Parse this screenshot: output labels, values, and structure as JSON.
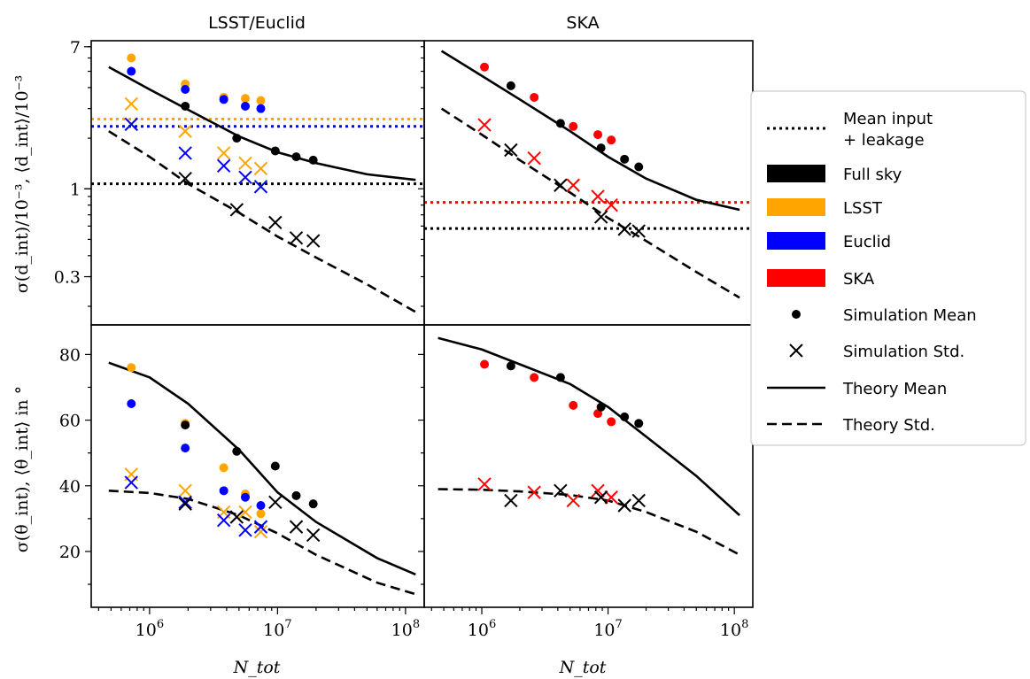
{
  "colors": {
    "full_sky": "#000000",
    "lsst": "#FFA500",
    "euclid": "#0000FF",
    "ska": "#FF0000"
  },
  "chart_data": [
    {
      "type": "scatter",
      "panel": "top-left",
      "title": "LSST/Euclid",
      "ylabel": "σ(d_int)/10⁻³, ⟨d_int⟩/10⁻³",
      "yscale": "log",
      "xscale": "log",
      "xlim": [
        350000,
        140000000
      ],
      "ylim": [
        0.155,
        7.6
      ],
      "yticks": [
        {
          "v": 7,
          "label": "7"
        },
        {
          "v": 1,
          "label": "1"
        },
        {
          "v": 0.3,
          "label": "0.3"
        }
      ],
      "xticks": [],
      "hlines": [
        {
          "name": "mean-input-lsst",
          "color": "#FFA500",
          "y": 2.6
        },
        {
          "name": "mean-input-euclid",
          "color": "#0000FF",
          "y": 2.35
        },
        {
          "name": "mean-input",
          "color": "#000000",
          "y": 1.07
        }
      ],
      "theory_mean": {
        "x": [
          480000,
          1000000,
          2000000,
          5000000,
          10000000,
          20000000,
          50000000,
          120000000
        ],
        "y": [
          5.3,
          3.9,
          2.95,
          2.05,
          1.65,
          1.42,
          1.22,
          1.13
        ]
      },
      "theory_std": {
        "x": [
          480000,
          1000000,
          2000000,
          5000000,
          10000000,
          20000000,
          50000000,
          120000000
        ],
        "y": [
          2.2,
          1.55,
          1.07,
          0.72,
          0.52,
          0.39,
          0.27,
          0.185
        ]
      },
      "sim_mean": [
        {
          "series": "lsst",
          "x": [
            720000,
            1900000,
            3800000,
            5600000,
            7400000
          ],
          "y": [
            6.0,
            4.2,
            3.5,
            3.45,
            3.35
          ]
        },
        {
          "series": "euclid",
          "x": [
            720000,
            1900000,
            3800000,
            5600000,
            7400000
          ],
          "y": [
            5.0,
            3.9,
            3.4,
            3.1,
            3.0
          ]
        },
        {
          "series": "full_sky",
          "x": [
            1900000,
            4800000,
            9600000,
            14000000,
            19000000
          ],
          "y": [
            3.1,
            2.0,
            1.68,
            1.55,
            1.48
          ]
        }
      ],
      "sim_std": [
        {
          "series": "lsst",
          "x": [
            720000,
            1900000,
            3800000,
            5600000,
            7400000
          ],
          "y": [
            3.2,
            2.2,
            1.63,
            1.42,
            1.32
          ]
        },
        {
          "series": "euclid",
          "x": [
            720000,
            1900000,
            3800000,
            5600000,
            7400000
          ],
          "y": [
            2.42,
            1.63,
            1.37,
            1.17,
            1.03
          ]
        },
        {
          "series": "full_sky",
          "x": [
            1900000,
            4800000,
            9600000,
            14000000,
            19000000
          ],
          "y": [
            1.15,
            0.75,
            0.63,
            0.51,
            0.49
          ]
        }
      ]
    },
    {
      "type": "scatter",
      "panel": "top-right",
      "title": "SKA",
      "yscale": "log",
      "xscale": "log",
      "xlim": [
        350000,
        140000000
      ],
      "ylim": [
        0.155,
        7.6
      ],
      "hlines": [
        {
          "name": "mean-input-ska",
          "color": "#FF0000",
          "y": 0.83
        },
        {
          "name": "mean-input",
          "color": "#000000",
          "y": 0.58
        }
      ],
      "theory_mean": {
        "x": [
          480000,
          1000000,
          2000000,
          5000000,
          10000000,
          20000000,
          50000000,
          110000000
        ],
        "y": [
          6.6,
          4.7,
          3.4,
          2.2,
          1.55,
          1.15,
          0.86,
          0.75
        ]
      },
      "theory_std": {
        "x": [
          480000,
          1000000,
          2000000,
          5000000,
          10000000,
          20000000,
          50000000,
          110000000
        ],
        "y": [
          3.0,
          2.1,
          1.48,
          0.95,
          0.67,
          0.49,
          0.32,
          0.225
        ]
      },
      "sim_mean": [
        {
          "series": "ska",
          "x": [
            1050000,
            2600000,
            5300000,
            8300000,
            10600000
          ],
          "y": [
            5.3,
            3.5,
            2.35,
            2.1,
            1.95
          ]
        },
        {
          "series": "full_sky",
          "x": [
            1700000,
            4200000,
            8800000,
            13500000,
            17500000
          ],
          "y": [
            4.1,
            2.45,
            1.75,
            1.5,
            1.35
          ]
        }
      ],
      "sim_std": [
        {
          "series": "ska",
          "x": [
            1050000,
            2600000,
            5300000,
            8300000,
            10600000
          ],
          "y": [
            2.4,
            1.52,
            1.05,
            0.9,
            0.8
          ]
        },
        {
          "series": "full_sky",
          "x": [
            1700000,
            4200000,
            8800000,
            13500000,
            17500000
          ],
          "y": [
            1.7,
            1.05,
            0.68,
            0.575,
            0.56
          ]
        }
      ]
    },
    {
      "type": "scatter",
      "panel": "bottom-left",
      "xlabel": "N_tot",
      "ylabel": "σ(θ_int), ⟨θ_int⟩ in °",
      "xscale": "log",
      "yscale": "linear",
      "xlim": [
        350000,
        140000000
      ],
      "ylim": [
        3,
        89
      ],
      "yticks": [
        {
          "v": 80,
          "label": "80"
        },
        {
          "v": 60,
          "label": "60"
        },
        {
          "v": 40,
          "label": "40"
        },
        {
          "v": 20,
          "label": "20"
        }
      ],
      "xticks": [
        {
          "v": 1000000,
          "base": "10",
          "exp": "6"
        },
        {
          "v": 10000000,
          "base": "10",
          "exp": "7"
        },
        {
          "v": 100000000,
          "base": "10",
          "exp": "8"
        }
      ],
      "theory_mean": {
        "x": [
          480000,
          1000000,
          2000000,
          5000000,
          10000000,
          20000000,
          60000000,
          120000000
        ],
        "y": [
          77.5,
          73,
          65,
          51,
          38,
          29,
          18,
          13
        ]
      },
      "theory_std": {
        "x": [
          480000,
          1000000,
          2000000,
          5000000,
          10000000,
          20000000,
          60000000,
          120000000
        ],
        "y": [
          38.5,
          37.8,
          36,
          31,
          25.5,
          19,
          10.5,
          7
        ]
      },
      "sim_mean": [
        {
          "series": "lsst",
          "x": [
            720000,
            1900000,
            3800000,
            5600000,
            7400000
          ],
          "y": [
            76,
            59,
            45.5,
            37.5,
            31.5
          ]
        },
        {
          "series": "euclid",
          "x": [
            720000,
            1900000,
            3800000,
            5600000,
            7400000
          ],
          "y": [
            65,
            51.5,
            38.5,
            36.5,
            34
          ]
        },
        {
          "series": "full_sky",
          "x": [
            1900000,
            4800000,
            9600000,
            14000000,
            19000000
          ],
          "y": [
            58.5,
            50.5,
            46,
            37,
            34.5
          ]
        }
      ],
      "sim_std": [
        {
          "series": "lsst",
          "x": [
            720000,
            1900000,
            3800000,
            5600000,
            7400000
          ],
          "y": [
            43.5,
            38.5,
            32,
            32,
            26
          ]
        },
        {
          "series": "euclid",
          "x": [
            720000,
            1900000,
            3800000,
            5600000,
            7400000
          ],
          "y": [
            41,
            35,
            29.5,
            26.5,
            27.5
          ]
        },
        {
          "series": "full_sky",
          "x": [
            1900000,
            4800000,
            9600000,
            14000000,
            19000000
          ],
          "y": [
            34.5,
            30.5,
            35,
            27.5,
            25
          ]
        }
      ]
    },
    {
      "type": "scatter",
      "panel": "bottom-right",
      "xlabel": "N_tot",
      "xscale": "log",
      "yscale": "linear",
      "xlim": [
        350000,
        140000000
      ],
      "ylim": [
        3,
        89
      ],
      "xticks": [
        {
          "v": 1000000,
          "base": "10",
          "exp": "6"
        },
        {
          "v": 10000000,
          "base": "10",
          "exp": "7"
        },
        {
          "v": 100000000,
          "base": "10",
          "exp": "8"
        }
      ],
      "theory_mean": {
        "x": [
          450000,
          1000000,
          2000000,
          5000000,
          10000000,
          20000000,
          50000000,
          110000000
        ],
        "y": [
          85,
          81.5,
          77,
          71,
          64,
          55,
          43,
          31
        ]
      },
      "theory_std": {
        "x": [
          450000,
          1000000,
          2000000,
          5000000,
          10000000,
          20000000,
          50000000,
          110000000
        ],
        "y": [
          39,
          38.8,
          38.3,
          37.2,
          35.5,
          32,
          26,
          19
        ]
      },
      "sim_mean": [
        {
          "series": "ska",
          "x": [
            1050000,
            2600000,
            5300000,
            8300000,
            10600000
          ],
          "y": [
            77,
            73,
            64.5,
            62,
            59.5
          ]
        },
        {
          "series": "full_sky",
          "x": [
            1700000,
            4200000,
            8800000,
            13500000,
            17500000
          ],
          "y": [
            76.5,
            73,
            64,
            61,
            59
          ]
        }
      ],
      "sim_std": [
        {
          "series": "ska",
          "x": [
            1050000,
            2600000,
            5300000,
            8300000,
            10600000
          ],
          "y": [
            40.5,
            38,
            35.5,
            38.5,
            36.5
          ]
        },
        {
          "series": "full_sky",
          "x": [
            1700000,
            4200000,
            8800000,
            13500000,
            17500000
          ],
          "y": [
            35.5,
            38.5,
            36.5,
            34,
            35.5
          ]
        }
      ]
    }
  ],
  "legend": {
    "placement": "right",
    "items": [
      {
        "kind": "dotted",
        "color": "#000000",
        "label": "Mean input",
        "label2": "+ leakage"
      },
      {
        "kind": "patch",
        "color": "#000000",
        "label": "Full sky"
      },
      {
        "kind": "patch",
        "color": "#FFA500",
        "label": "LSST"
      },
      {
        "kind": "patch",
        "color": "#0000FF",
        "label": "Euclid"
      },
      {
        "kind": "patch",
        "color": "#FF0000",
        "label": "SKA"
      },
      {
        "kind": "dot",
        "color": "#000000",
        "label": "Simulation Mean"
      },
      {
        "kind": "cross",
        "color": "#000000",
        "label": "Simulation Std."
      },
      {
        "kind": "solid",
        "color": "#000000",
        "label": "Theory Mean"
      },
      {
        "kind": "dashed",
        "color": "#000000",
        "label": "Theory Std."
      }
    ]
  }
}
